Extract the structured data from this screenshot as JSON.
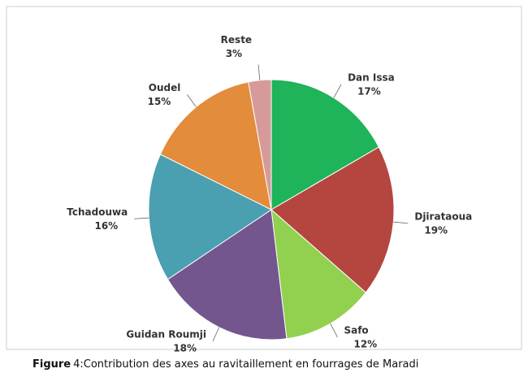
{
  "chart_data": {
    "type": "pie",
    "categories": [
      "Dan Issa",
      "Djirataoua",
      "Safo",
      "Guidan Roumji",
      "Tchadouwa",
      "Oudel",
      "Reste"
    ],
    "values": [
      17,
      19,
      12,
      18,
      16,
      15,
      3
    ],
    "value_labels": [
      "17%",
      "19%",
      "12%",
      "18%",
      "16%",
      "15%",
      "3%"
    ],
    "colors": [
      "#1fb35a",
      "#b4463f",
      "#92d050",
      "#74568f",
      "#4a9fb0",
      "#e38c3c",
      "#d79a9a"
    ]
  },
  "caption": {
    "label": "Figure",
    "text": "4:Contribution des axes au ravitaillement en fourrages de Maradi"
  }
}
